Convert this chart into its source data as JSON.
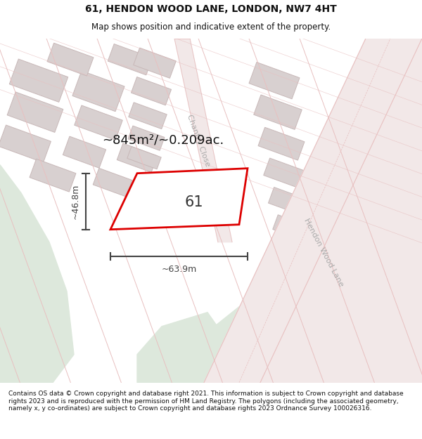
{
  "title": "61, HENDON WOOD LANE, LONDON, NW7 4HT",
  "subtitle": "Map shows position and indicative extent of the property.",
  "area_label": "~845m²/~0.209ac.",
  "property_number": "61",
  "dim_width": "~63.9m",
  "dim_height": "~46.8m",
  "street_label_chantry": "Chantry Close",
  "street_label_hendon": "Hendon Wood Lane",
  "bg_color": "#f7f4f4",
  "road_fill_color": "#f2e8e8",
  "road_line_color": "#e8c0c0",
  "building_fill_color": "#d8d0d0",
  "building_edge_color": "#c8b8b8",
  "green_color": "#dde8dc",
  "property_edge_color": "#dd0000",
  "property_fill_color": "#ffffff",
  "dim_color": "#444444",
  "text_color": "#111111",
  "label_color": "#333333",
  "street_text_color": "#aaaaaa",
  "footer_text": "Contains OS data © Crown copyright and database right 2021. This information is subject to Crown copyright and database rights 2023 and is reproduced with the permission of HM Land Registry. The polygons (including the associated geometry, namely x, y co-ordinates) are subject to Crown copyright and database rights 2023 Ordnance Survey 100026316.",
  "title_fontsize": 10,
  "subtitle_fontsize": 8.5,
  "area_fontsize": 13,
  "number_fontsize": 15,
  "dim_fontsize": 9,
  "street_fontsize": 8,
  "footer_fontsize": 6.5
}
